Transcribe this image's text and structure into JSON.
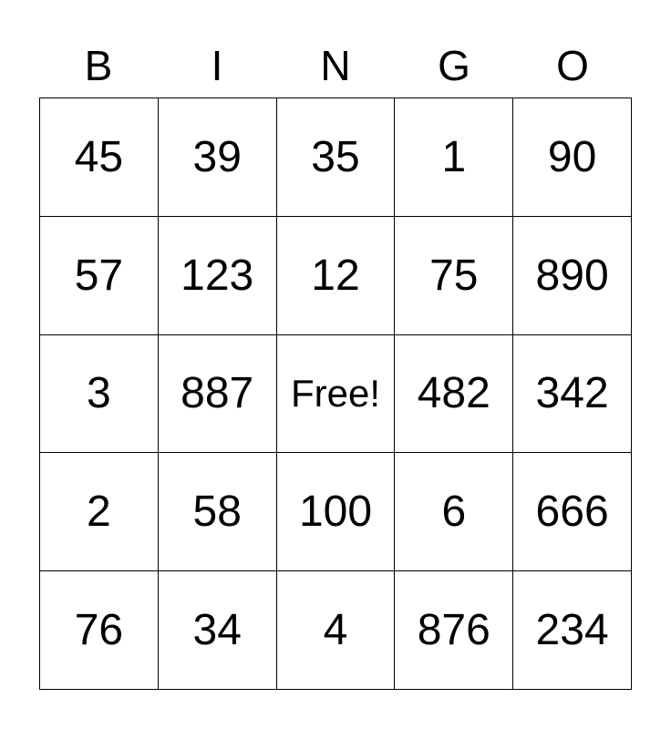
{
  "header": [
    "B",
    "I",
    "N",
    "G",
    "O"
  ],
  "rows": [
    [
      "45",
      "39",
      "35",
      "1",
      "90"
    ],
    [
      "57",
      "123",
      "12",
      "75",
      "890"
    ],
    [
      "3",
      "887",
      "Free!",
      "482",
      "342"
    ],
    [
      "2",
      "58",
      "100",
      "6",
      "666"
    ],
    [
      "76",
      "34",
      "4",
      "876",
      "234"
    ]
  ]
}
